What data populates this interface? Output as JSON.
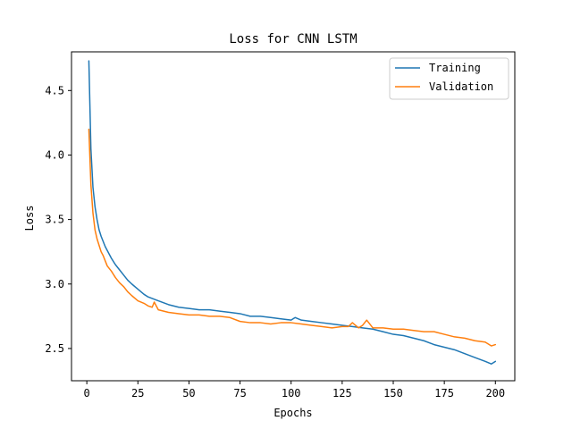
{
  "chart_data": {
    "type": "line",
    "title": "Loss for CNN LSTM",
    "xlabel": "Epochs",
    "ylabel": "Loss",
    "xlim": [
      -7.5,
      209.5
    ],
    "ylim": [
      2.25,
      4.8
    ],
    "xticks": [
      0,
      25,
      50,
      75,
      100,
      125,
      150,
      175,
      200
    ],
    "yticks": [
      2.5,
      3.0,
      3.5,
      4.0,
      4.5
    ],
    "ytick_labels": [
      "2.5",
      "3.0",
      "3.5",
      "4.0",
      "4.5"
    ],
    "grid": false,
    "legend": "top-right",
    "series": [
      {
        "name": "Training",
        "color": "#1f77b4",
        "x": [
          1,
          2,
          3,
          4,
          5,
          6,
          7,
          8,
          9,
          10,
          12,
          14,
          16,
          18,
          20,
          22,
          25,
          28,
          30,
          35,
          40,
          45,
          50,
          55,
          60,
          65,
          70,
          75,
          80,
          85,
          90,
          95,
          100,
          102,
          105,
          110,
          115,
          120,
          125,
          130,
          135,
          140,
          145,
          150,
          155,
          160,
          165,
          170,
          175,
          180,
          185,
          190,
          195,
          198,
          200
        ],
        "y": [
          4.73,
          4.05,
          3.75,
          3.6,
          3.5,
          3.42,
          3.37,
          3.33,
          3.29,
          3.26,
          3.2,
          3.15,
          3.11,
          3.07,
          3.03,
          3.0,
          2.96,
          2.92,
          2.9,
          2.87,
          2.84,
          2.82,
          2.81,
          2.8,
          2.8,
          2.79,
          2.78,
          2.77,
          2.75,
          2.75,
          2.74,
          2.73,
          2.72,
          2.74,
          2.72,
          2.71,
          2.7,
          2.69,
          2.68,
          2.67,
          2.66,
          2.65,
          2.63,
          2.61,
          2.6,
          2.58,
          2.56,
          2.53,
          2.51,
          2.49,
          2.46,
          2.43,
          2.4,
          2.38,
          2.4
        ]
      },
      {
        "name": "Validation",
        "color": "#ff7f0e",
        "x": [
          1,
          2,
          3,
          4,
          5,
          6,
          7,
          8,
          9,
          10,
          12,
          14,
          16,
          18,
          20,
          22,
          25,
          28,
          30,
          32,
          33,
          35,
          40,
          45,
          50,
          55,
          60,
          65,
          70,
          75,
          80,
          85,
          90,
          95,
          100,
          105,
          110,
          115,
          120,
          125,
          128,
          130,
          133,
          135,
          137,
          140,
          145,
          150,
          155,
          160,
          165,
          170,
          175,
          180,
          185,
          190,
          195,
          198,
          200
        ],
        "y": [
          4.2,
          3.77,
          3.55,
          3.42,
          3.35,
          3.3,
          3.25,
          3.22,
          3.18,
          3.14,
          3.1,
          3.05,
          3.01,
          2.98,
          2.94,
          2.91,
          2.87,
          2.85,
          2.83,
          2.82,
          2.86,
          2.8,
          2.78,
          2.77,
          2.76,
          2.76,
          2.75,
          2.75,
          2.74,
          2.71,
          2.7,
          2.7,
          2.69,
          2.7,
          2.7,
          2.69,
          2.68,
          2.67,
          2.66,
          2.67,
          2.67,
          2.7,
          2.66,
          2.68,
          2.72,
          2.66,
          2.66,
          2.65,
          2.65,
          2.64,
          2.63,
          2.63,
          2.61,
          2.59,
          2.58,
          2.56,
          2.55,
          2.52,
          2.53
        ]
      }
    ]
  }
}
